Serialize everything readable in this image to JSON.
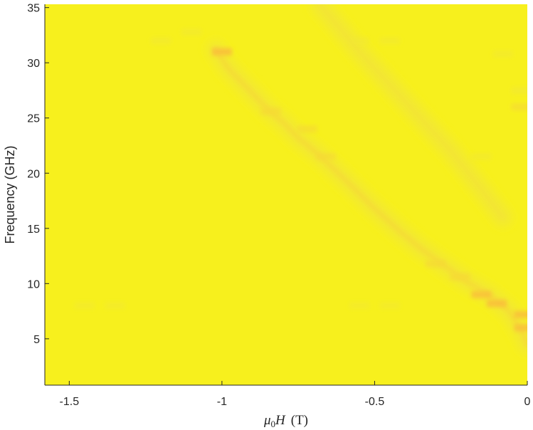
{
  "chart_data": {
    "type": "heatmap",
    "xlabel_parts": {
      "mu": "μ",
      "sub": "0",
      "var": "H",
      "unit": "(T)"
    },
    "ylabel": "Frequency (GHz)",
    "xlim": [
      -1.58,
      0
    ],
    "ylim": [
      0.8,
      35.3
    ],
    "xticks": [
      -1.5,
      -1,
      -0.5,
      0
    ],
    "xtick_labels": [
      "-1.5",
      "-1",
      "-0.5",
      "0"
    ],
    "yticks": [
      5,
      10,
      15,
      20,
      25,
      30,
      35
    ],
    "ytick_labels": [
      "5",
      "10",
      "15",
      "20",
      "25",
      "30",
      "35"
    ],
    "grid": false,
    "colors": {
      "background": "#f7f01d",
      "faint": "#f2e835",
      "mid": "#f6da36",
      "strong": "#f9c13a",
      "axis": "#262626"
    },
    "modes": [
      {
        "name": "",
        "points": [
          [
            -1.02,
            31.2
          ],
          [
            -0.98,
            29.5
          ],
          [
            -0.92,
            27.8
          ],
          [
            -0.85,
            25.8
          ],
          [
            -0.8,
            24.6
          ],
          [
            -0.75,
            23.2
          ],
          [
            -0.68,
            21.6
          ],
          [
            -0.6,
            19.5
          ],
          [
            -0.5,
            16.8
          ],
          [
            -0.42,
            14.8
          ],
          [
            -0.35,
            13.2
          ],
          [
            -0.28,
            11.8
          ],
          [
            -0.2,
            10.2
          ],
          [
            -0.12,
            8.9
          ],
          [
            -0.06,
            7.5
          ],
          [
            -0.02,
            5.8
          ],
          [
            0.0,
            4.5
          ]
        ]
      },
      {
        "name": "",
        "points": [
          [
            -0.68,
            35.3
          ],
          [
            -0.55,
            31.0
          ],
          [
            -0.45,
            28.0
          ],
          [
            -0.35,
            25.0
          ],
          [
            -0.25,
            22.0
          ],
          [
            -0.15,
            18.5
          ],
          [
            -0.08,
            16.0
          ]
        ]
      }
    ],
    "hotspots": [
      {
        "x": -1.0,
        "y": 31.0,
        "intensity": 0.9
      },
      {
        "x": -0.84,
        "y": 25.6,
        "intensity": 0.6
      },
      {
        "x": -0.72,
        "y": 24.0,
        "intensity": 0.5
      },
      {
        "x": -0.66,
        "y": 21.5,
        "intensity": 0.5
      },
      {
        "x": -0.3,
        "y": 11.8,
        "intensity": 0.6
      },
      {
        "x": -0.22,
        "y": 10.6,
        "intensity": 0.7
      },
      {
        "x": -0.15,
        "y": 9.0,
        "intensity": 0.8
      },
      {
        "x": -0.1,
        "y": 8.2,
        "intensity": 0.9
      },
      {
        "x": -0.01,
        "y": 7.2,
        "intensity": 0.85
      },
      {
        "x": -0.01,
        "y": 6.0,
        "intensity": 0.8
      },
      {
        "x": -0.02,
        "y": 26.0,
        "intensity": 0.5
      },
      {
        "x": -0.02,
        "y": 27.5,
        "intensity": 0.4
      },
      {
        "x": -1.2,
        "y": 32.0,
        "intensity": 0.35
      },
      {
        "x": -1.1,
        "y": 32.8,
        "intensity": 0.3
      },
      {
        "x": -0.55,
        "y": 32.0,
        "intensity": 0.3
      },
      {
        "x": -0.45,
        "y": 32.0,
        "intensity": 0.3
      },
      {
        "x": -0.15,
        "y": 21.5,
        "intensity": 0.3
      },
      {
        "x": -0.08,
        "y": 30.8,
        "intensity": 0.25
      },
      {
        "x": -1.45,
        "y": 8.0,
        "intensity": 0.2
      },
      {
        "x": -1.35,
        "y": 8.0,
        "intensity": 0.2
      },
      {
        "x": -0.55,
        "y": 8.0,
        "intensity": 0.2
      },
      {
        "x": -0.45,
        "y": 8.0,
        "intensity": 0.2
      }
    ]
  }
}
